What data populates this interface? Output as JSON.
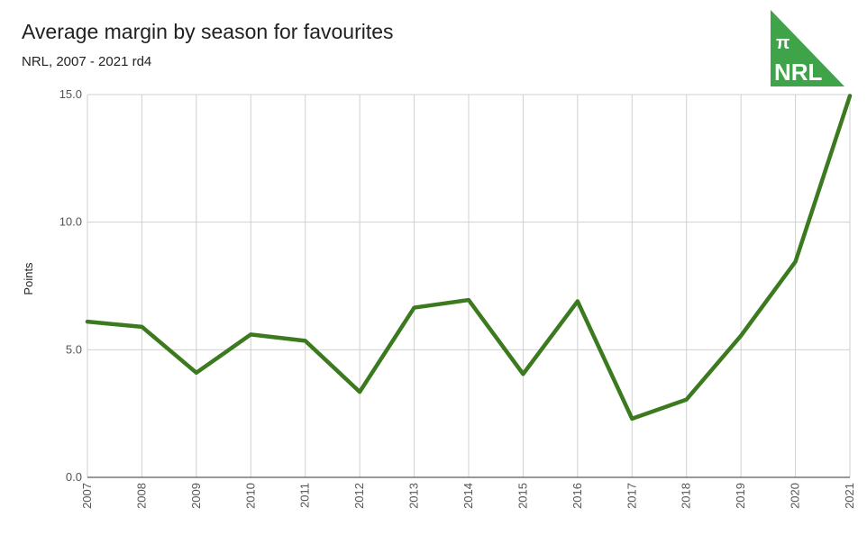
{
  "chart_data": {
    "type": "line",
    "title": "Average margin by season for favourites",
    "subtitle": "NRL, 2007 - 2021 rd4",
    "xlabel": "",
    "ylabel": "Points",
    "x": [
      "2007",
      "2008",
      "2009",
      "2010",
      "2011",
      "2012",
      "2013",
      "2014",
      "2015",
      "2016",
      "2017",
      "2018",
      "2019",
      "2020",
      "2021"
    ],
    "series": [
      {
        "values": [
          6.1,
          5.9,
          4.1,
          5.6,
          5.35,
          3.35,
          6.65,
          6.95,
          4.05,
          6.9,
          2.3,
          3.05,
          5.55,
          8.45,
          14.95
        ],
        "color": "#3b7a1e"
      }
    ],
    "ylim": [
      0,
      15
    ],
    "yticks": [
      "0.0",
      "5.0",
      "10.0",
      "15.0"
    ],
    "grid": true,
    "legend": "none"
  },
  "logo": {
    "symbol": "π",
    "text": "NRL",
    "color": "#3fa34a"
  }
}
